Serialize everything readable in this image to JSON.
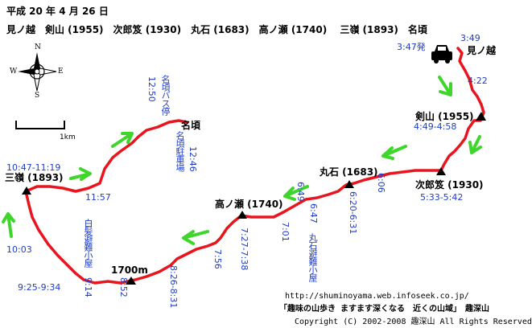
{
  "header": {
    "date": "平成 20 年 4 月 26 日",
    "route": "見ノ越　剣山 (1955)　次郎笈 (1930)　丸石 (1683)　高ノ瀬 (1740)　 三嶺 (1893)　名頃"
  },
  "compass": {
    "n": "N",
    "s": "S",
    "e": "E",
    "w": "W"
  },
  "scale": {
    "label": "1km"
  },
  "colors": {
    "route": "#e8141e",
    "arrow": "#3ed62a",
    "time": "#1e3cc8",
    "text": "#000000"
  },
  "places": {
    "minokoshi": "見ノ越",
    "tsurugisan": "剣山 (1955)",
    "jirogyu": "次郎笈 (1930)",
    "maruishi": "丸石 (1683)",
    "takanose": "高ノ瀬 (1740)",
    "sanrei": "三嶺 (1893)",
    "nagoro": "名頃",
    "pt1700": "1700m",
    "nagoro_bus": "名頃バス停",
    "nagoro_parking": "名頃駐車場",
    "hakuga_hut": "白髪避難小屋",
    "maruishi_hut": "丸石避難小屋"
  },
  "times": {
    "depart": "3:47発",
    "minokoshi": "3:49",
    "t0422": "4:22",
    "tsurugisan": "4:49-4:58",
    "jirogyu": "5:33-5:42",
    "t0606": "6:06",
    "maruishi": "6:20-6:31",
    "t0647": "6:47",
    "t0649": "6:49",
    "t0701": "7:01",
    "takanose": "7:27-7:38",
    "t0756": "7:56",
    "t0826": "8:26-8:31",
    "t0852": "8:52",
    "t0914": "9:14",
    "t0925": "9:25-9:34",
    "t1003": "10:03",
    "sanrei": "10:47-11:19",
    "t1157": "11:57",
    "t1246": "12:46",
    "t1250": "12:50"
  },
  "footer": {
    "url": "http://shuminoyama.web.infoseek.co.jp/",
    "site": "「趣味の山歩き ますます深くなる　近くの山域」　趣深山",
    "copyright": "Copyright (C) 2002-2008 趣深山 All Rights Reserved"
  }
}
